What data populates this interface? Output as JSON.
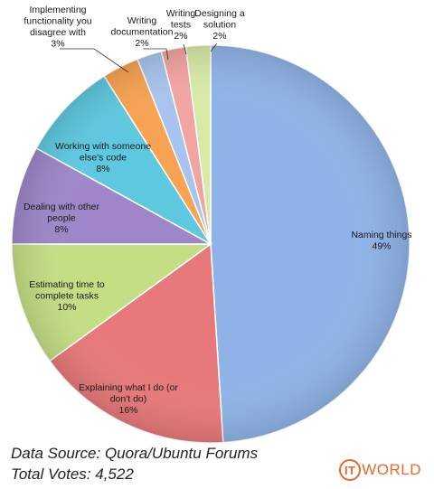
{
  "chart_data": {
    "type": "pie",
    "title": "",
    "slices": [
      {
        "label": [
          "Naming things",
          "49%"
        ],
        "value": 49,
        "color": "#8fb3e6"
      },
      {
        "label": [
          "Explaining what I do (or",
          "don't do)",
          "16%"
        ],
        "value": 16,
        "color": "#e8797a"
      },
      {
        "label": [
          "Estimating time to",
          "complete tasks",
          "10%"
        ],
        "value": 10,
        "color": "#c4de84"
      },
      {
        "label": [
          "Dealing with other",
          "people",
          "8%"
        ],
        "value": 8,
        "color": "#9e86c8"
      },
      {
        "label": [
          "Working with someone",
          "else's code",
          "8%"
        ],
        "value": 8,
        "color": "#5ec8df"
      },
      {
        "label": [
          "Implementing",
          "functionality you",
          "disagree with",
          "3%"
        ],
        "value": 3,
        "color": "#f7a352"
      },
      {
        "label": [
          "Writing",
          "documentation",
          "2%"
        ],
        "value": 2,
        "color": "#a8c4ee"
      },
      {
        "label": [
          "Writing",
          "tests",
          "2%"
        ],
        "value": 2,
        "color": "#f2a4a2"
      },
      {
        "label": [
          "Designing a",
          "solution",
          "2%"
        ],
        "value": 2,
        "color": "#d8e9a6"
      }
    ]
  },
  "footer": {
    "source": "Data Source: Quora/Ubuntu Forums",
    "votes": "Total Votes: 4,522"
  },
  "logo": {
    "ring_text": "IT",
    "text": "WORLD",
    "color": "#e5692e"
  }
}
